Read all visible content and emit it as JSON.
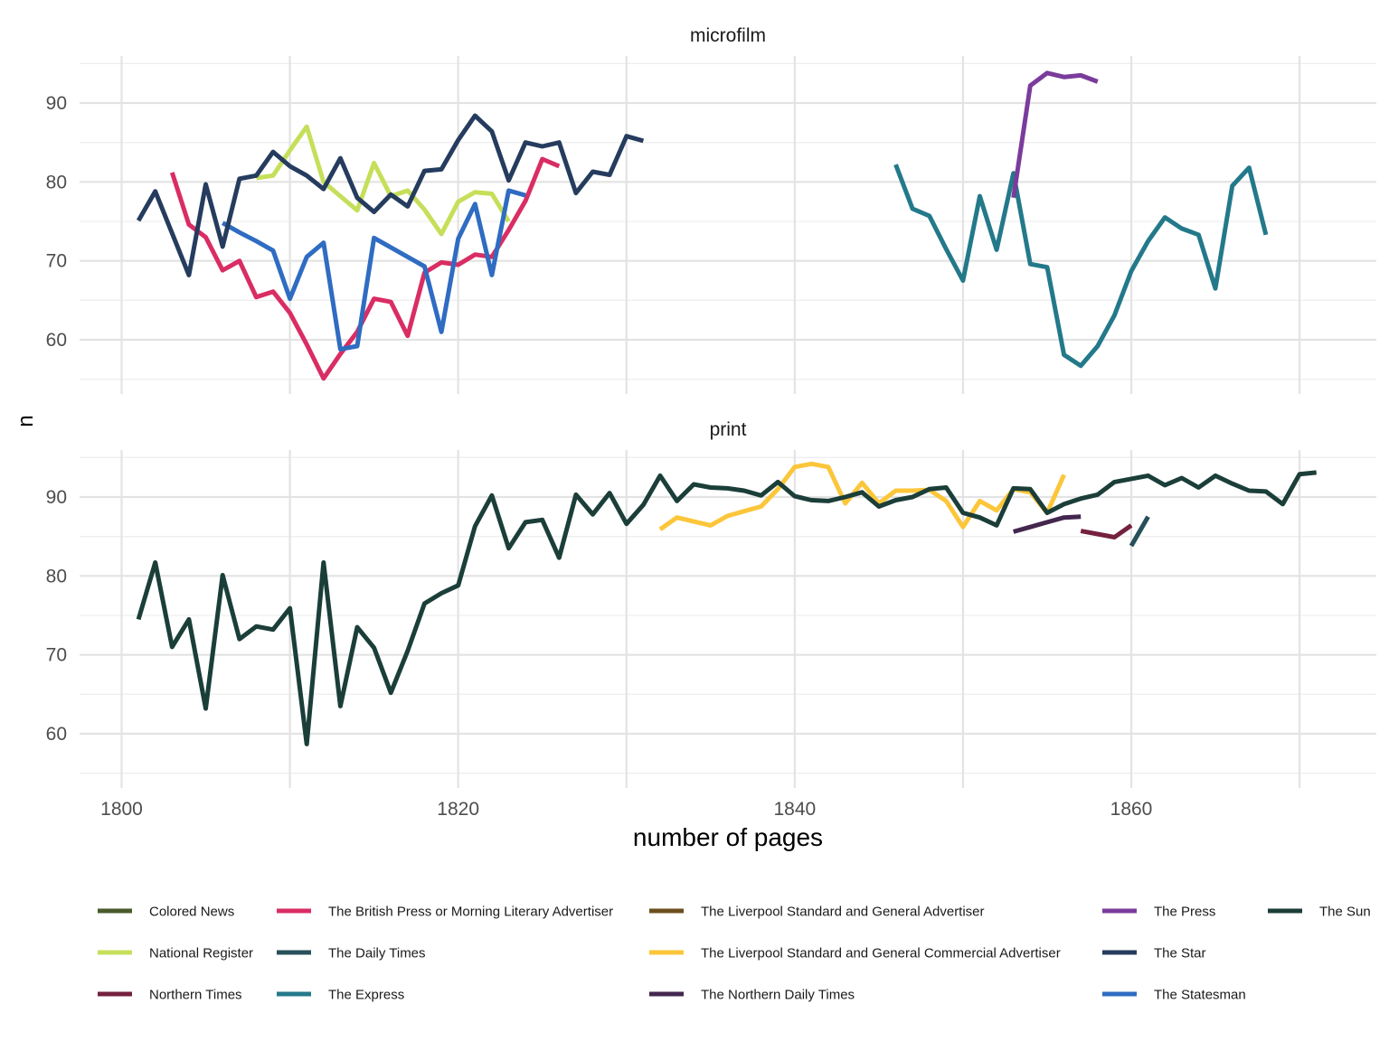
{
  "chart_data": {
    "type": "line",
    "xlabel": "number of pages",
    "ylabel": "n",
    "xlim": [
      1800,
      1875
    ],
    "ylim": [
      53,
      97
    ],
    "x_ticks": [
      1800,
      1820,
      1840,
      1860
    ],
    "y_ticks": [
      60,
      70,
      80,
      90
    ],
    "grid": true,
    "legend_position": "bottom",
    "legend": [
      {
        "name": "Colored News",
        "color": "#4a5a2c"
      },
      {
        "name": "National Register",
        "color": "#c6df5a"
      },
      {
        "name": "Northern Times",
        "color": "#74203f"
      },
      {
        "name": "The British Press or Morning Literary Advertiser",
        "color": "#d92d64"
      },
      {
        "name": "The Daily Times",
        "color": "#27505a"
      },
      {
        "name": "The Express",
        "color": "#23798a"
      },
      {
        "name": "The Liverpool Standard and General Advertiser",
        "color": "#6c4f1e"
      },
      {
        "name": "The Liverpool Standard and General Commercial Advertiser",
        "color": "#fcc63a"
      },
      {
        "name": "The Northern Daily Times",
        "color": "#43274e"
      },
      {
        "name": "The Press",
        "color": "#7a3c9c"
      },
      {
        "name": "The Star",
        "color": "#253c5e"
      },
      {
        "name": "The Statesman",
        "color": "#2f6cc2"
      },
      {
        "name": "The Sun",
        "color": "#1b3e39"
      }
    ],
    "facets": [
      {
        "title": "microfilm",
        "series": [
          {
            "name": "National Register",
            "x": [
              1808,
              1809,
              1810,
              1811,
              1812,
              1813,
              1814,
              1815,
              1816,
              1817,
              1818,
              1819,
              1820,
              1821,
              1822,
              1823
            ],
            "y": [
              80.5,
              80.8,
              84,
              87,
              80,
              78.2,
              76.4,
              82.4,
              78.2,
              78.9,
              76.5,
              73.4,
              77.5,
              78.7,
              78.5,
              75
            ]
          },
          {
            "name": "The British Press or Morning Literary Advertiser",
            "x": [
              1803,
              1804,
              1805,
              1806,
              1807,
              1808,
              1809,
              1810,
              1811,
              1812,
              1813,
              1814,
              1815,
              1816,
              1817,
              1818,
              1819,
              1820,
              1821,
              1822,
              1823,
              1824,
              1825,
              1826
            ],
            "y": [
              81.2,
              74.6,
              73,
              68.8,
              70,
              65.4,
              66.1,
              63.4,
              59.4,
              55.1,
              58.2,
              61,
              65.2,
              64.8,
              60.5,
              68.5,
              69.8,
              69.5,
              70.8,
              70.5,
              73.9,
              77.6,
              82.9,
              82
            ]
          },
          {
            "name": "The Statesman",
            "x": [
              1806,
              1807,
              1808,
              1809,
              1810,
              1811,
              1812,
              1813,
              1814,
              1815,
              1816,
              1817,
              1818,
              1819,
              1820,
              1821,
              1822,
              1823,
              1824
            ],
            "y": [
              74.8,
              73.6,
              72.5,
              71.3,
              65.2,
              70.5,
              72.3,
              58.8,
              59.2,
              72.9,
              71.7,
              70.5,
              69.3,
              61,
              72.8,
              77.2,
              68.2,
              78.9,
              78.3
            ]
          },
          {
            "name": "The Star",
            "x": [
              1801,
              1802,
              1803,
              1804,
              1805,
              1806,
              1807,
              1808,
              1809,
              1810,
              1811,
              1812,
              1813,
              1814,
              1815,
              1816,
              1817,
              1818,
              1819,
              1820,
              1821,
              1822,
              1823,
              1824,
              1825,
              1826,
              1827,
              1828,
              1829,
              1830,
              1831
            ],
            "y": [
              75.1,
              78.8,
              73.5,
              68.2,
              79.7,
              71.8,
              80.4,
              80.8,
              83.8,
              82,
              80.8,
              79.1,
              83,
              78,
              76.2,
              78.4,
              76.9,
              81.4,
              81.6,
              85.3,
              88.4,
              86.4,
              80.2,
              85,
              84.5,
              85,
              78.6,
              81.3,
              80.9,
              85.8,
              85.2
            ]
          },
          {
            "name": "The Express",
            "x": [
              1846,
              1847,
              1848,
              1849,
              1850,
              1851,
              1852,
              1853,
              1854,
              1855,
              1856,
              1857,
              1858,
              1859,
              1860,
              1861,
              1862,
              1863,
              1864,
              1865,
              1866,
              1867,
              1868
            ],
            "y": [
              82.2,
              76.6,
              75.7,
              71.5,
              67.5,
              78.2,
              71.4,
              81.1,
              69.6,
              69.2,
              58.1,
              56.7,
              59.2,
              63.1,
              68.7,
              72.5,
              75.5,
              74.1,
              73.3,
              66.5,
              79.5,
              81.8,
              73.3
            ]
          },
          {
            "name": "The Press",
            "x": [
              1853,
              1854,
              1855,
              1856,
              1857,
              1858
            ],
            "y": [
              78,
              92.2,
              93.8,
              93.3,
              93.5,
              92.7
            ]
          }
        ]
      },
      {
        "title": "print",
        "series": [
          {
            "name": "The Liverpool Standard and General Commercial Advertiser",
            "x": [
              1832,
              1833,
              1834,
              1835,
              1836,
              1837,
              1838,
              1839,
              1840,
              1841,
              1842,
              1843,
              1844,
              1845,
              1846,
              1847,
              1848,
              1849,
              1850,
              1851,
              1852,
              1853,
              1854,
              1855,
              1856
            ],
            "y": [
              85.9,
              87.4,
              86.9,
              86.4,
              87.6,
              88.2,
              88.8,
              91,
              93.8,
              94.2,
              93.8,
              89.2,
              91.8,
              89.2,
              90.8,
              90.8,
              90.9,
              89.5,
              86.2,
              89.5,
              88.3,
              91,
              90.6,
              88,
              92.8
            ]
          },
          {
            "name": "The Northern Daily Times",
            "x": [
              1853,
              1854,
              1855,
              1856,
              1857
            ],
            "y": [
              85.6,
              86.2,
              86.8,
              87.4,
              87.5
            ]
          },
          {
            "name": "Northern Times",
            "x": [
              1857,
              1858,
              1859,
              1860
            ],
            "y": [
              85.7,
              85.3,
              84.9,
              86.4
            ]
          },
          {
            "name": "The Daily Times",
            "x": [
              1860,
              1861
            ],
            "y": [
              83.8,
              87.5
            ]
          },
          {
            "name": "The Sun",
            "x": [
              1801,
              1802,
              1803,
              1804,
              1805,
              1806,
              1807,
              1808,
              1809,
              1810,
              1811,
              1812,
              1813,
              1814,
              1815,
              1816,
              1817,
              1818,
              1819,
              1820,
              1821,
              1822,
              1823,
              1824,
              1825,
              1826,
              1827,
              1828,
              1829,
              1830,
              1831,
              1832,
              1833,
              1834,
              1835,
              1836,
              1837,
              1838,
              1839,
              1840,
              1841,
              1842,
              1843,
              1844,
              1845,
              1846,
              1847,
              1848,
              1849,
              1850,
              1851,
              1852,
              1853,
              1854,
              1855,
              1856,
              1857,
              1858,
              1859,
              1860,
              1861,
              1862,
              1863,
              1864,
              1865,
              1866,
              1867,
              1868,
              1869,
              1870,
              1871
            ],
            "y": [
              74.5,
              81.7,
              71,
              74.5,
              63.2,
              80.1,
              72,
              73.6,
              73.2,
              75.9,
              58.7,
              81.7,
              63.5,
              73.5,
              70.9,
              65.2,
              70.5,
              76.5,
              77.8,
              78.8,
              86.3,
              90.2,
              83.5,
              86.8,
              87.1,
              82.3,
              90.3,
              87.8,
              90.5,
              86.6,
              89,
              92.7,
              89.5,
              91.6,
              91.2,
              91.1,
              90.8,
              90.2,
              91.9,
              90.1,
              89.6,
              89.5,
              90,
              90.6,
              88.8,
              89.6,
              90,
              91,
              91.2,
              88,
              87.4,
              86.4,
              91.1,
              91,
              88,
              89.1,
              89.8,
              90.3,
              91.9,
              92.3,
              92.7,
              91.5,
              92.4,
              91.2,
              92.7,
              91.7,
              90.8,
              90.7,
              89.1,
              92.9,
              93.1
            ]
          }
        ]
      }
    ]
  }
}
